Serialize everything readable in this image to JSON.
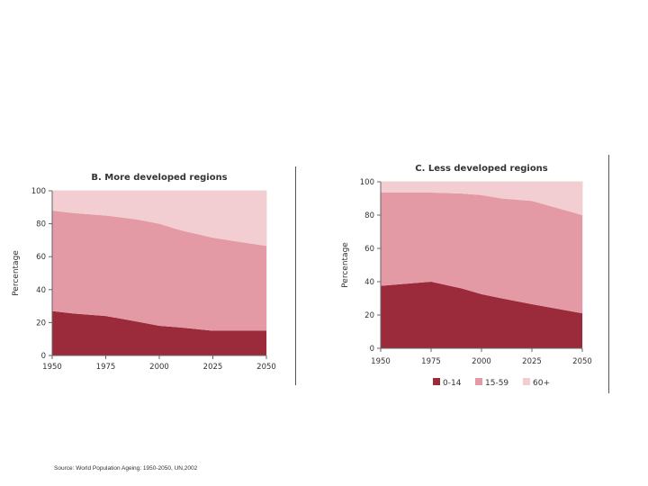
{
  "source_note": "Source: World Population Ageing: 1950-2050, UN,2002",
  "colors": {
    "age_0_14": "#9b2a3b",
    "age_15_59": "#e39aa4",
    "age_60_plus": "#f2cdd2",
    "plot_bg": "#ffffff",
    "axis": "#666666",
    "grid": "#dddddd"
  },
  "chart_data": [
    {
      "id": "B",
      "type": "area",
      "stacked": true,
      "title": "B. More developed regions",
      "ylabel": "Percentage",
      "xlabel": "",
      "x": [
        1950,
        1975,
        2000,
        2025,
        2050
      ],
      "x_tick_labels": [
        "1950",
        "1975",
        "2000",
        "2025",
        "2050"
      ],
      "y_tick_labels": [
        "100",
        "80",
        "60",
        "40",
        "20",
        "0"
      ],
      "y_tick_values": [
        100,
        80,
        60,
        40,
        20,
        0
      ],
      "xlim": [
        1950,
        2050
      ],
      "ylim": [
        0,
        100
      ],
      "series": [
        {
          "key": "age_0_14",
          "points": [
            [
              1950,
              27
            ],
            [
              1960,
              25.5
            ],
            [
              1975,
              24
            ],
            [
              1990,
              20.5
            ],
            [
              2000,
              18
            ],
            [
              2010,
              17
            ],
            [
              2025,
              15
            ],
            [
              2050,
              15
            ]
          ]
        },
        {
          "key": "age_15_59",
          "points": [
            [
              1950,
              61
            ],
            [
              1960,
              61
            ],
            [
              1975,
              61
            ],
            [
              1990,
              62
            ],
            [
              2000,
              62
            ],
            [
              2010,
              59
            ],
            [
              2025,
              56.5
            ],
            [
              2050,
              51.5
            ]
          ]
        },
        {
          "key": "age_60_plus",
          "points": [
            [
              1950,
              12
            ],
            [
              1960,
              13.5
            ],
            [
              1975,
              15
            ],
            [
              1990,
              17.5
            ],
            [
              2000,
              20
            ],
            [
              2010,
              24
            ],
            [
              2025,
              28.5
            ],
            [
              2050,
              33.5
            ]
          ]
        }
      ],
      "legend": null
    },
    {
      "id": "C",
      "type": "area",
      "stacked": true,
      "title": "C. Less developed regions",
      "ylabel": "Percentage",
      "xlabel": "",
      "x": [
        1950,
        1975,
        2000,
        2025,
        2050
      ],
      "x_tick_labels": [
        "1950",
        "1975",
        "2000",
        "2025",
        "2050"
      ],
      "y_tick_labels": [
        "100",
        "80",
        "60",
        "40",
        "20",
        "0"
      ],
      "y_tick_values": [
        100,
        80,
        60,
        40,
        20,
        0
      ],
      "xlim": [
        1950,
        2050
      ],
      "ylim": [
        0,
        100
      ],
      "series": [
        {
          "key": "age_0_14",
          "points": [
            [
              1950,
              37.5
            ],
            [
              1960,
              38.5
            ],
            [
              1975,
              40
            ],
            [
              1990,
              36
            ],
            [
              2000,
              32.5
            ],
            [
              2010,
              30
            ],
            [
              2025,
              26.5
            ],
            [
              2050,
              21
            ]
          ]
        },
        {
          "key": "age_15_59",
          "points": [
            [
              1950,
              56
            ],
            [
              1960,
              55
            ],
            [
              1975,
              53.5
            ],
            [
              1990,
              57
            ],
            [
              2000,
              59.5
            ],
            [
              2010,
              60
            ],
            [
              2025,
              62
            ],
            [
              2050,
              59
            ]
          ]
        },
        {
          "key": "age_60_plus",
          "points": [
            [
              1950,
              6.5
            ],
            [
              1960,
              6.5
            ],
            [
              1975,
              6.5
            ],
            [
              1990,
              7
            ],
            [
              2000,
              8
            ],
            [
              2010,
              10
            ],
            [
              2025,
              11.5
            ],
            [
              2050,
              20
            ]
          ]
        }
      ],
      "legend": {
        "placement": "bottom",
        "entries": [
          {
            "key": "age_0_14",
            "label": "0-14"
          },
          {
            "key": "age_15_59",
            "label": "15-59"
          },
          {
            "key": "age_60_plus",
            "label": "60+"
          }
        ]
      }
    }
  ]
}
